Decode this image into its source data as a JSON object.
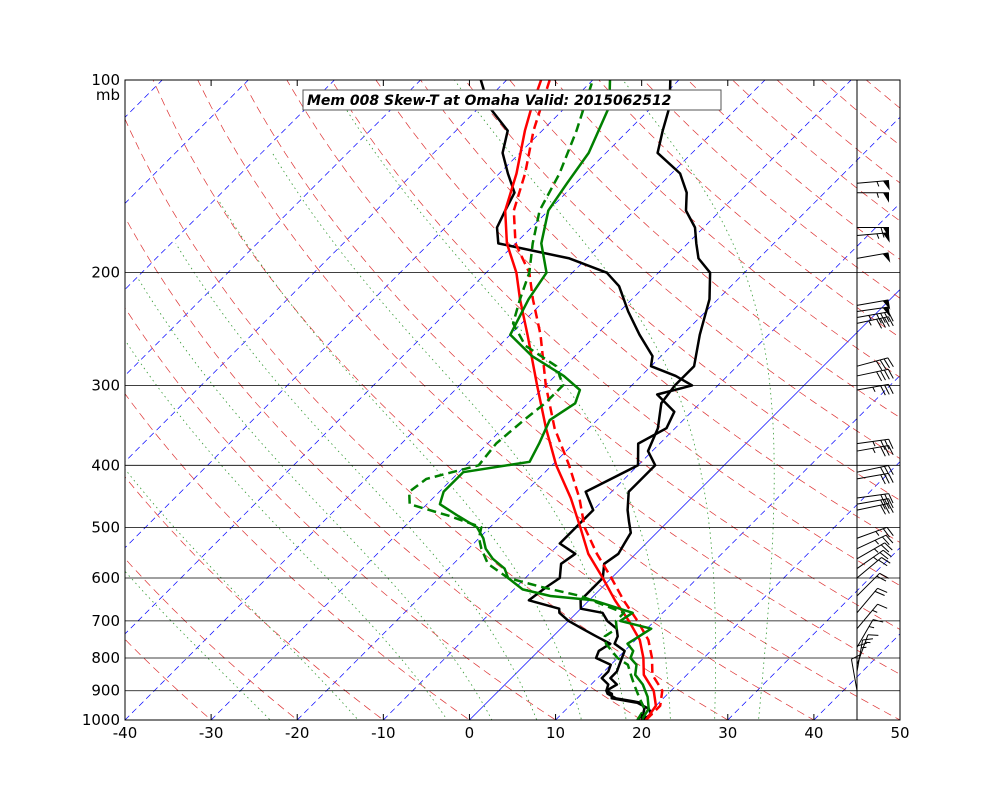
{
  "chart_data": {
    "type": "line",
    "title": "Mem 008  Skew-T at Omaha   Valid: 2015062512",
    "ylabel_unit": "mb",
    "xlim": [
      -40,
      50
    ],
    "ylim": [
      1000,
      100
    ],
    "y_scale": "log",
    "x_ticks": [
      -40,
      -30,
      -20,
      -10,
      0,
      10,
      20,
      30,
      40,
      50
    ],
    "y_ticks": [
      100,
      200,
      300,
      400,
      500,
      600,
      700,
      800,
      900,
      1000
    ],
    "grid": true,
    "series": [
      {
        "color": "#000000",
        "style": "solid",
        "kind": "temperature",
        "points": [
          [
            1000,
            19.5
          ],
          [
            980,
            19.5
          ],
          [
            960,
            19.0
          ],
          [
            940,
            18.0
          ],
          [
            925,
            14.5
          ],
          [
            910,
            13.0
          ],
          [
            900,
            12.5
          ],
          [
            880,
            13.0
          ],
          [
            860,
            11.5
          ],
          [
            840,
            11.5
          ],
          [
            820,
            11.0
          ],
          [
            800,
            10.5
          ],
          [
            780,
            10.0
          ],
          [
            760,
            8.0
          ],
          [
            740,
            7.5
          ],
          [
            720,
            6.5
          ],
          [
            700,
            4.5
          ],
          [
            680,
            3.0
          ],
          [
            670,
            0.0
          ],
          [
            650,
            -1.0
          ],
          [
            600,
            -1.0
          ],
          [
            570,
            -2.5
          ],
          [
            550,
            -2.0
          ],
          [
            530,
            -2.5
          ],
          [
            510,
            -3.0
          ],
          [
            490,
            -4.5
          ],
          [
            470,
            -6.0
          ],
          [
            440,
            -8.0
          ],
          [
            400,
            -8.0
          ],
          [
            380,
            -10.5
          ],
          [
            350,
            -12.0
          ],
          [
            320,
            -14.5
          ],
          [
            300,
            -15.0
          ],
          [
            280,
            -15.0
          ],
          [
            250,
            -18.0
          ],
          [
            220,
            -21.0
          ],
          [
            200,
            -24.0
          ],
          [
            190,
            -27.0
          ],
          [
            180,
            -29.0
          ],
          [
            170,
            -31.0
          ],
          [
            160,
            -34.0
          ],
          [
            150,
            -36.0
          ],
          [
            140,
            -39.0
          ],
          [
            130,
            -44.0
          ],
          [
            120,
            -46.0
          ],
          [
            110,
            -48.0
          ],
          [
            100,
            -51.0
          ]
        ]
      },
      {
        "color": "#000000",
        "style": "solid",
        "kind": "dewpoint",
        "points": [
          [
            1000,
            20.0
          ],
          [
            980,
            20.5
          ],
          [
            960,
            19.5
          ],
          [
            940,
            17.5
          ],
          [
            925,
            14.0
          ],
          [
            910,
            13.5
          ],
          [
            900,
            12.5
          ],
          [
            880,
            12.0
          ],
          [
            860,
            10.5
          ],
          [
            840,
            10.5
          ],
          [
            820,
            10.0
          ],
          [
            800,
            7.5
          ],
          [
            780,
            7.0
          ],
          [
            760,
            7.5
          ],
          [
            740,
            5.0
          ],
          [
            720,
            2.5
          ],
          [
            700,
            0.0
          ],
          [
            680,
            -2.0
          ],
          [
            670,
            -2.5
          ],
          [
            650,
            -7.0
          ],
          [
            620,
            -6.5
          ],
          [
            600,
            -6.0
          ],
          [
            570,
            -7.5
          ],
          [
            550,
            -7.0
          ],
          [
            530,
            -10.0
          ],
          [
            500,
            -10.0
          ],
          [
            470,
            -10.0
          ],
          [
            440,
            -13.0
          ],
          [
            400,
            -10.0
          ],
          [
            370,
            -12.5
          ],
          [
            350,
            -11.0
          ],
          [
            330,
            -12.0
          ],
          [
            310,
            -16.0
          ],
          [
            300,
            -13.0
          ],
          [
            290,
            -16.0
          ],
          [
            280,
            -20.0
          ],
          [
            270,
            -21.0
          ],
          [
            250,
            -25.0
          ],
          [
            230,
            -29.0
          ],
          [
            210,
            -33.0
          ],
          [
            200,
            -36.0
          ],
          [
            190,
            -42.0
          ],
          [
            180,
            -52.0
          ],
          [
            170,
            -54.0
          ],
          [
            160,
            -55.0
          ],
          [
            150,
            -56.0
          ],
          [
            140,
            -59.0
          ],
          [
            130,
            -62.0
          ],
          [
            120,
            -64.0
          ],
          [
            110,
            -69.0
          ],
          [
            100,
            -73.0
          ]
        ]
      },
      {
        "color": "#ff0000",
        "style": "solid",
        "kind": "temperature",
        "points": [
          [
            1000,
            20.5
          ],
          [
            950,
            20.0
          ],
          [
            900,
            18.0
          ],
          [
            850,
            15.0
          ],
          [
            800,
            13.0
          ],
          [
            750,
            10.5
          ],
          [
            700,
            7.0
          ],
          [
            650,
            3.0
          ],
          [
            600,
            -1.0
          ],
          [
            550,
            -5.5
          ],
          [
            500,
            -9.5
          ],
          [
            450,
            -14.0
          ],
          [
            400,
            -19.5
          ],
          [
            350,
            -25.0
          ],
          [
            300,
            -31.0
          ],
          [
            250,
            -38.0
          ],
          [
            220,
            -43.0
          ],
          [
            200,
            -46.5
          ],
          [
            180,
            -51.0
          ],
          [
            160,
            -55.0
          ],
          [
            140,
            -58.0
          ],
          [
            120,
            -62.0
          ],
          [
            110,
            -64.0
          ],
          [
            100,
            -66.0
          ]
        ]
      },
      {
        "color": "#ff0000",
        "style": "dashed",
        "kind": "temperature",
        "points": [
          [
            1000,
            20.5
          ],
          [
            950,
            20.5
          ],
          [
            900,
            19.0
          ],
          [
            850,
            16.0
          ],
          [
            800,
            14.0
          ],
          [
            750,
            11.5
          ],
          [
            700,
            8.0
          ],
          [
            650,
            4.0
          ],
          [
            600,
            0.0
          ],
          [
            550,
            -4.5
          ],
          [
            500,
            -9.0
          ],
          [
            450,
            -13.0
          ],
          [
            400,
            -18.0
          ],
          [
            350,
            -24.0
          ],
          [
            300,
            -30.0
          ],
          [
            250,
            -36.5
          ],
          [
            220,
            -41.5
          ],
          [
            200,
            -45.0
          ],
          [
            180,
            -50.0
          ],
          [
            160,
            -54.0
          ],
          [
            140,
            -57.0
          ],
          [
            120,
            -61.0
          ],
          [
            100,
            -65.0
          ]
        ]
      },
      {
        "color": "#008000",
        "style": "solid",
        "kind": "dewpoint",
        "points": [
          [
            1000,
            20.0
          ],
          [
            960,
            19.5
          ],
          [
            920,
            18.0
          ],
          [
            880,
            16.0
          ],
          [
            850,
            14.0
          ],
          [
            820,
            13.0
          ],
          [
            800,
            11.5
          ],
          [
            780,
            11.0
          ],
          [
            760,
            9.5
          ],
          [
            740,
            10.0
          ],
          [
            720,
            10.5
          ],
          [
            700,
            6.0
          ],
          [
            680,
            6.5
          ],
          [
            650,
            0.5
          ],
          [
            640,
            -5.0
          ],
          [
            625,
            -9.0
          ],
          [
            600,
            -12.0
          ],
          [
            580,
            -13.5
          ],
          [
            560,
            -16.0
          ],
          [
            540,
            -18.0
          ],
          [
            520,
            -19.5
          ],
          [
            500,
            -21.5
          ],
          [
            480,
            -25.0
          ],
          [
            460,
            -28.5
          ],
          [
            440,
            -29.5
          ],
          [
            410,
            -29.5
          ],
          [
            395,
            -23.0
          ],
          [
            370,
            -24.0
          ],
          [
            340,
            -25.5
          ],
          [
            320,
            -24.5
          ],
          [
            305,
            -25.5
          ],
          [
            290,
            -29.0
          ],
          [
            270,
            -35.0
          ],
          [
            250,
            -40.0
          ],
          [
            220,
            -42.0
          ],
          [
            200,
            -43.0
          ],
          [
            180,
            -47.0
          ],
          [
            160,
            -50.0
          ],
          [
            145,
            -51.0
          ],
          [
            130,
            -52.0
          ],
          [
            110,
            -55.0
          ],
          [
            100,
            -58.0
          ]
        ]
      },
      {
        "color": "#008000",
        "style": "dashed",
        "kind": "dewpoint",
        "points": [
          [
            1000,
            19.5
          ],
          [
            960,
            19.0
          ],
          [
            920,
            17.0
          ],
          [
            880,
            15.0
          ],
          [
            850,
            13.5
          ],
          [
            820,
            12.0
          ],
          [
            800,
            10.0
          ],
          [
            780,
            8.5
          ],
          [
            760,
            7.0
          ],
          [
            740,
            6.0
          ],
          [
            720,
            6.5
          ],
          [
            700,
            5.5
          ],
          [
            680,
            5.5
          ],
          [
            660,
            2.0
          ],
          [
            640,
            -1.5
          ],
          [
            620,
            -7.0
          ],
          [
            600,
            -12.0
          ],
          [
            570,
            -16.0
          ],
          [
            540,
            -18.5
          ],
          [
            520,
            -20.0
          ],
          [
            500,
            -21.0
          ],
          [
            480,
            -26.0
          ],
          [
            460,
            -32.0
          ],
          [
            440,
            -33.5
          ],
          [
            420,
            -33.0
          ],
          [
            400,
            -28.5
          ],
          [
            370,
            -29.0
          ],
          [
            340,
            -28.5
          ],
          [
            320,
            -28.0
          ],
          [
            300,
            -28.0
          ],
          [
            280,
            -31.0
          ],
          [
            260,
            -37.0
          ],
          [
            240,
            -41.0
          ],
          [
            220,
            -43.0
          ],
          [
            200,
            -45.0
          ],
          [
            180,
            -48.0
          ],
          [
            160,
            -51.0
          ],
          [
            140,
            -53.0
          ],
          [
            120,
            -56.0
          ],
          [
            100,
            -60.0
          ]
        ]
      }
    ],
    "wind_barbs": [
      {
        "p": 145,
        "speed": 55,
        "dir": 265
      },
      {
        "p": 150,
        "speed": 55,
        "dir": 270
      },
      {
        "p": 170,
        "speed": 60,
        "dir": 270
      },
      {
        "p": 175,
        "speed": 55,
        "dir": 265
      },
      {
        "p": 190,
        "speed": 50,
        "dir": 260
      },
      {
        "p": 225,
        "speed": 50,
        "dir": 260
      },
      {
        "p": 230,
        "speed": 50,
        "dir": 262
      },
      {
        "p": 235,
        "speed": 45,
        "dir": 260
      },
      {
        "p": 240,
        "speed": 45,
        "dir": 258
      },
      {
        "p": 280,
        "speed": 40,
        "dir": 255
      },
      {
        "p": 290,
        "speed": 40,
        "dir": 258
      },
      {
        "p": 305,
        "speed": 35,
        "dir": 260
      },
      {
        "p": 370,
        "speed": 35,
        "dir": 262
      },
      {
        "p": 380,
        "speed": 35,
        "dir": 260
      },
      {
        "p": 410,
        "speed": 30,
        "dir": 258
      },
      {
        "p": 420,
        "speed": 30,
        "dir": 260
      },
      {
        "p": 450,
        "speed": 30,
        "dir": 262
      },
      {
        "p": 460,
        "speed": 30,
        "dir": 260
      },
      {
        "p": 470,
        "speed": 30,
        "dir": 258
      },
      {
        "p": 520,
        "speed": 25,
        "dir": 250
      },
      {
        "p": 540,
        "speed": 25,
        "dir": 245
      },
      {
        "p": 560,
        "speed": 25,
        "dir": 240
      },
      {
        "p": 580,
        "speed": 25,
        "dir": 235
      },
      {
        "p": 600,
        "speed": 20,
        "dir": 230
      },
      {
        "p": 640,
        "speed": 20,
        "dir": 225
      },
      {
        "p": 680,
        "speed": 20,
        "dir": 220
      },
      {
        "p": 720,
        "speed": 15,
        "dir": 220
      },
      {
        "p": 770,
        "speed": 15,
        "dir": 210
      },
      {
        "p": 820,
        "speed": 15,
        "dir": 200
      },
      {
        "p": 840,
        "speed": 15,
        "dir": 190
      },
      {
        "p": 860,
        "speed": 10,
        "dir": 180
      },
      {
        "p": 900,
        "speed": 10,
        "dir": 170
      }
    ]
  }
}
